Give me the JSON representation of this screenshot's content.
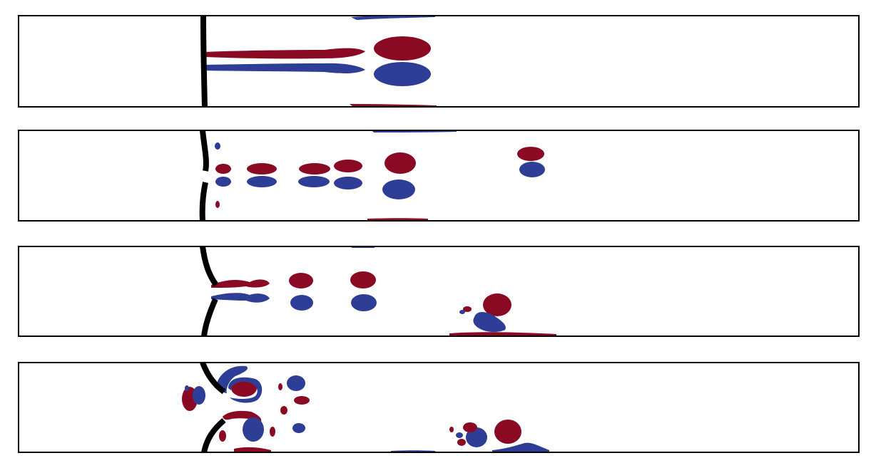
{
  "colors": {
    "positive_vorticity": "#8b0a23",
    "negative_vorticity": "#2e3d96",
    "plate": "#000000",
    "frame": "#000000",
    "background": "#ffffff"
  },
  "panels": [
    {
      "id": "panel-1"
    },
    {
      "id": "panel-2"
    },
    {
      "id": "panel-3"
    },
    {
      "id": "panel-4"
    }
  ]
}
